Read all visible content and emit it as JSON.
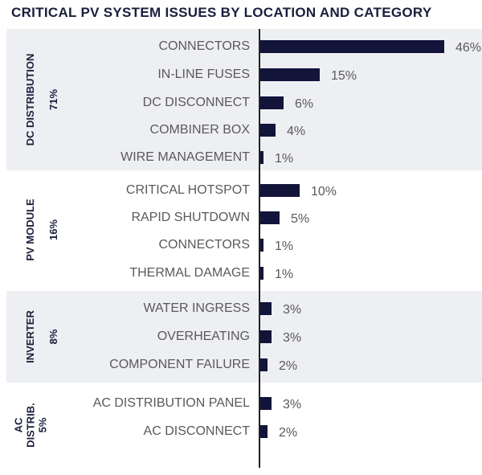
{
  "chart_data": {
    "type": "bar",
    "orientation": "horizontal",
    "title": "CRITICAL PV SYSTEM ISSUES BY LOCATION AND CATEGORY",
    "groups": [
      {
        "name": "DC DISTRIBUTION",
        "share": "71%",
        "items": [
          {
            "label": "CONNECTORS",
            "value": 46
          },
          {
            "label": "IN-LINE FUSES",
            "value": 15
          },
          {
            "label": "DC DISCONNECT",
            "value": 6
          },
          {
            "label": "COMBINER BOX",
            "value": 4
          },
          {
            "label": "WIRE MANAGEMENT",
            "value": 1
          }
        ]
      },
      {
        "name": "PV MODULE",
        "share": "16%",
        "items": [
          {
            "label": "CRITICAL HOTSPOT",
            "value": 10
          },
          {
            "label": "RAPID SHUTDOWN",
            "value": 5
          },
          {
            "label": "CONNECTORS",
            "value": 1
          },
          {
            "label": "THERMAL DAMAGE",
            "value": 1
          }
        ]
      },
      {
        "name": "INVERTER",
        "share": "8%",
        "items": [
          {
            "label": "WATER INGRESS",
            "value": 3
          },
          {
            "label": "OVERHEATING",
            "value": 3
          },
          {
            "label": "COMPONENT FAILURE",
            "value": 2
          }
        ]
      },
      {
        "name": "AC DISTRIB.",
        "share": "5%",
        "items": [
          {
            "label": "AC DISTRIBUTION PANEL",
            "value": 3
          },
          {
            "label": "AC DISCONNECT",
            "value": 2
          }
        ]
      }
    ],
    "unit": "%",
    "bar_color": "#13143a",
    "band_color": "#eeeff3"
  }
}
